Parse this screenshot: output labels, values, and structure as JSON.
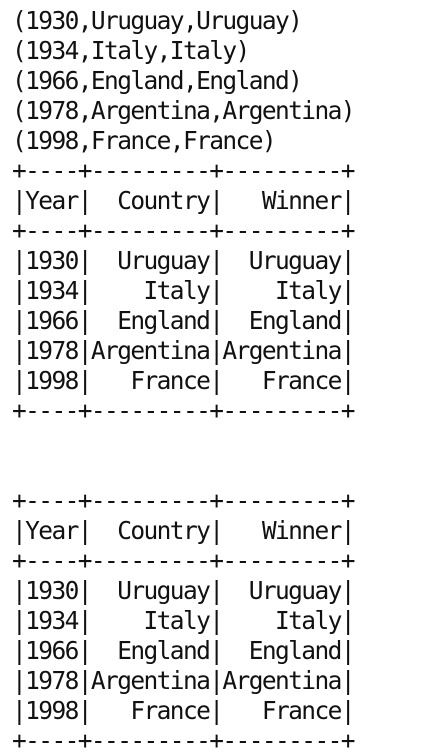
{
  "console": {
    "tuple_lines": [
      "(1930,Uruguay,Uruguay)",
      "(1934,Italy,Italy)",
      "(1966,England,England)",
      "(1978,Argentina,Argentina)",
      "(1998,France,France)"
    ],
    "table1": {
      "border": "+----+---------+---------+",
      "header": "|Year|  Country|   Winner|",
      "rows": [
        "|1930|  Uruguay|  Uruguay|",
        "|1934|    Italy|    Italy|",
        "|1966|  England|  England|",
        "|1978|Argentina|Argentina|",
        "|1998|   France|   France|"
      ]
    },
    "table2": {
      "border": "+----+---------+---------+",
      "header": "|Year|  Country|   Winner|",
      "rows": [
        "|1930|  Uruguay|  Uruguay|",
        "|1934|    Italy|    Italy|",
        "|1966|  England|  England|",
        "|1978|Argentina|Argentina|",
        "|1998|   France|   France|"
      ]
    }
  }
}
